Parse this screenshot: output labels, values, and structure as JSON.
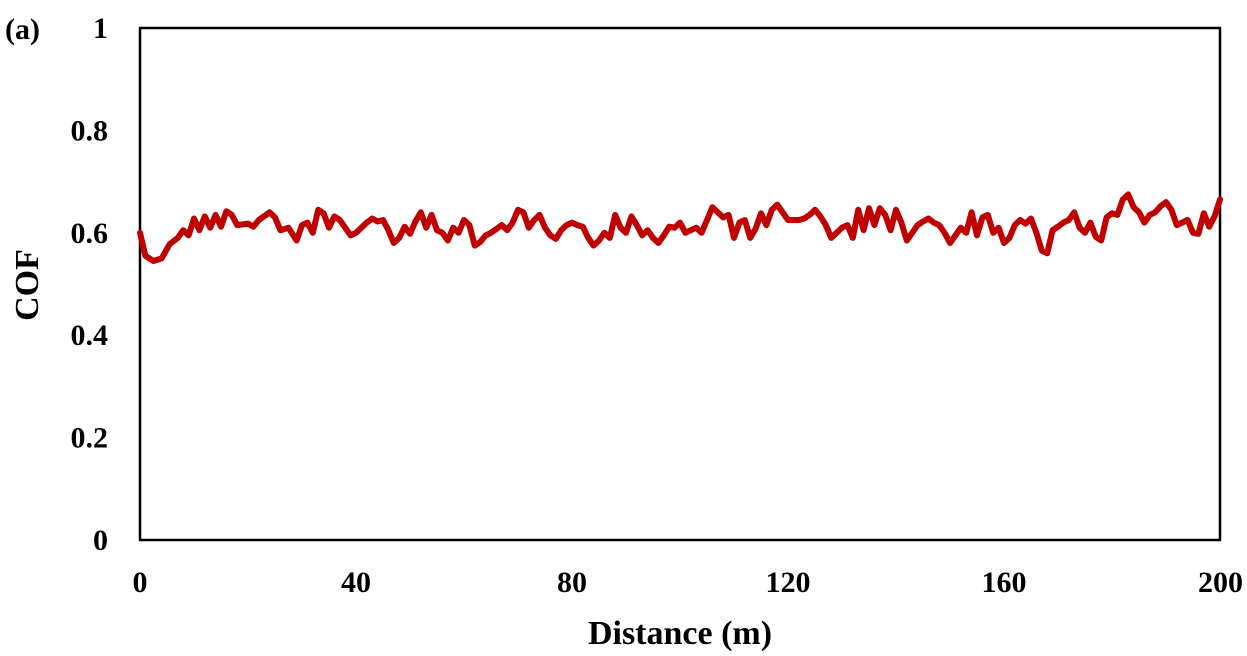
{
  "chart_data": {
    "type": "line",
    "panel_label": "(a)",
    "xlabel": "Distance (m)",
    "ylabel": "COF",
    "xlim": [
      0,
      200
    ],
    "ylim": [
      0,
      1
    ],
    "x_ticks": [
      0,
      40,
      80,
      120,
      160,
      200
    ],
    "x_tick_labels": [
      "0",
      "40",
      "80",
      "120",
      "160",
      "200"
    ],
    "y_ticks": [
      0,
      0.2,
      0.4,
      0.6,
      0.8,
      1
    ],
    "y_tick_labels": [
      "0",
      "0.2",
      "0.4",
      "0.6",
      "0.8",
      "1"
    ],
    "grid": false,
    "legend": "none",
    "line_color": "#c00000",
    "series": [
      {
        "values": [
          [
            0,
            0.6
          ],
          [
            1,
            0.555
          ],
          [
            2.5,
            0.545
          ],
          [
            4,
            0.55
          ],
          [
            5.5,
            0.578
          ],
          [
            7,
            0.59
          ],
          [
            8,
            0.605
          ],
          [
            9,
            0.595
          ],
          [
            10,
            0.628
          ],
          [
            11,
            0.605
          ],
          [
            12,
            0.632
          ],
          [
            13,
            0.61
          ],
          [
            14,
            0.635
          ],
          [
            15,
            0.612
          ],
          [
            16,
            0.642
          ],
          [
            17,
            0.635
          ],
          [
            18,
            0.615
          ],
          [
            20,
            0.618
          ],
          [
            21,
            0.612
          ],
          [
            22,
            0.625
          ],
          [
            24,
            0.64
          ],
          [
            25,
            0.63
          ],
          [
            26,
            0.605
          ],
          [
            27.5,
            0.61
          ],
          [
            29,
            0.585
          ],
          [
            30,
            0.615
          ],
          [
            31,
            0.62
          ],
          [
            32,
            0.6
          ],
          [
            33,
            0.645
          ],
          [
            34,
            0.638
          ],
          [
            35,
            0.61
          ],
          [
            36,
            0.632
          ],
          [
            37,
            0.625
          ],
          [
            38,
            0.61
          ],
          [
            39,
            0.595
          ],
          [
            40,
            0.6
          ],
          [
            42,
            0.62
          ],
          [
            43,
            0.628
          ],
          [
            44,
            0.622
          ],
          [
            45,
            0.625
          ],
          [
            46,
            0.605
          ],
          [
            47,
            0.58
          ],
          [
            48,
            0.59
          ],
          [
            49,
            0.612
          ],
          [
            50,
            0.598
          ],
          [
            51,
            0.622
          ],
          [
            52,
            0.64
          ],
          [
            53,
            0.61
          ],
          [
            54,
            0.635
          ],
          [
            55,
            0.605
          ],
          [
            56,
            0.6
          ],
          [
            57,
            0.585
          ],
          [
            58,
            0.61
          ],
          [
            59,
            0.6
          ],
          [
            60,
            0.625
          ],
          [
            61,
            0.615
          ],
          [
            62,
            0.575
          ],
          [
            63,
            0.582
          ],
          [
            64,
            0.595
          ],
          [
            65,
            0.6
          ],
          [
            67,
            0.615
          ],
          [
            68,
            0.605
          ],
          [
            69,
            0.62
          ],
          [
            70,
            0.645
          ],
          [
            71,
            0.64
          ],
          [
            72,
            0.61
          ],
          [
            73,
            0.625
          ],
          [
            74,
            0.635
          ],
          [
            75,
            0.61
          ],
          [
            76,
            0.595
          ],
          [
            77,
            0.588
          ],
          [
            78,
            0.605
          ],
          [
            79,
            0.615
          ],
          [
            80,
            0.62
          ],
          [
            81,
            0.615
          ],
          [
            82,
            0.612
          ],
          [
            83,
            0.59
          ],
          [
            84,
            0.575
          ],
          [
            85,
            0.585
          ],
          [
            86,
            0.6
          ],
          [
            87,
            0.59
          ],
          [
            88,
            0.635
          ],
          [
            89,
            0.61
          ],
          [
            90,
            0.6
          ],
          [
            91,
            0.632
          ],
          [
            92,
            0.615
          ],
          [
            93,
            0.595
          ],
          [
            94,
            0.605
          ],
          [
            95,
            0.59
          ],
          [
            96,
            0.58
          ],
          [
            97,
            0.595
          ],
          [
            98,
            0.612
          ],
          [
            99,
            0.61
          ],
          [
            100,
            0.62
          ],
          [
            101,
            0.6
          ],
          [
            102,
            0.605
          ],
          [
            103,
            0.61
          ],
          [
            104,
            0.6
          ],
          [
            105,
            0.625
          ],
          [
            106,
            0.65
          ],
          [
            107,
            0.64
          ],
          [
            108,
            0.63
          ],
          [
            109,
            0.635
          ],
          [
            110,
            0.59
          ],
          [
            111,
            0.62
          ],
          [
            112,
            0.625
          ],
          [
            113,
            0.59
          ],
          [
            114,
            0.608
          ],
          [
            115,
            0.638
          ],
          [
            116,
            0.615
          ],
          [
            117,
            0.645
          ],
          [
            118,
            0.655
          ],
          [
            119,
            0.64
          ],
          [
            120,
            0.625
          ],
          [
            122,
            0.625
          ],
          [
            123,
            0.628
          ],
          [
            124,
            0.635
          ],
          [
            125,
            0.645
          ],
          [
            126,
            0.632
          ],
          [
            127,
            0.615
          ],
          [
            128,
            0.59
          ],
          [
            129,
            0.6
          ],
          [
            130,
            0.61
          ],
          [
            131,
            0.615
          ],
          [
            132,
            0.59
          ],
          [
            133,
            0.645
          ],
          [
            134,
            0.605
          ],
          [
            135,
            0.648
          ],
          [
            136,
            0.615
          ],
          [
            137,
            0.648
          ],
          [
            138,
            0.635
          ],
          [
            139,
            0.605
          ],
          [
            140,
            0.645
          ],
          [
            141,
            0.62
          ],
          [
            142,
            0.585
          ],
          [
            143,
            0.6
          ],
          [
            144,
            0.615
          ],
          [
            145,
            0.622
          ],
          [
            146,
            0.628
          ],
          [
            147,
            0.62
          ],
          [
            148,
            0.615
          ],
          [
            149,
            0.6
          ],
          [
            150,
            0.58
          ],
          [
            151,
            0.595
          ],
          [
            152,
            0.61
          ],
          [
            153,
            0.6
          ],
          [
            154,
            0.64
          ],
          [
            155,
            0.595
          ],
          [
            156,
            0.63
          ],
          [
            157,
            0.635
          ],
          [
            158,
            0.6
          ],
          [
            159,
            0.61
          ],
          [
            160,
            0.58
          ],
          [
            161,
            0.59
          ],
          [
            162,
            0.615
          ],
          [
            163,
            0.625
          ],
          [
            164,
            0.618
          ],
          [
            165,
            0.628
          ],
          [
            166,
            0.6
          ],
          [
            167,
            0.565
          ],
          [
            168,
            0.56
          ],
          [
            169,
            0.605
          ],
          [
            170,
            0.612
          ],
          [
            171,
            0.62
          ],
          [
            172,
            0.625
          ],
          [
            173,
            0.64
          ],
          [
            174,
            0.61
          ],
          [
            175,
            0.6
          ],
          [
            176,
            0.62
          ],
          [
            177,
            0.592
          ],
          [
            178,
            0.585
          ],
          [
            179,
            0.63
          ],
          [
            180,
            0.638
          ],
          [
            181,
            0.635
          ],
          [
            182,
            0.665
          ],
          [
            183,
            0.675
          ],
          [
            184,
            0.65
          ],
          [
            185,
            0.64
          ],
          [
            186,
            0.62
          ],
          [
            187,
            0.635
          ],
          [
            188,
            0.64
          ],
          [
            189,
            0.652
          ],
          [
            190,
            0.66
          ],
          [
            191,
            0.645
          ],
          [
            192,
            0.615
          ],
          [
            193,
            0.62
          ],
          [
            194,
            0.625
          ],
          [
            195,
            0.6
          ],
          [
            196,
            0.598
          ],
          [
            197,
            0.638
          ],
          [
            198,
            0.612
          ],
          [
            199,
            0.632
          ],
          [
            200,
            0.665
          ]
        ]
      }
    ]
  }
}
